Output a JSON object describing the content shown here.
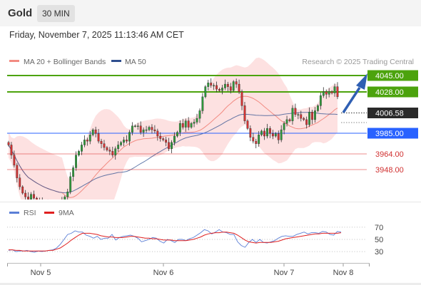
{
  "header": {
    "symbol": "Gold",
    "timeframe": "30 MIN",
    "datetime": "Friday, November 7, 2025 11:13:46 AM CET"
  },
  "legend": {
    "ma20_label": "MA 20 + Bollinger Bands",
    "ma50_label": "MA 50",
    "ma20_color": "#f28b82",
    "ma50_color": "#2f4f8f",
    "copyright": "Research © 2025 Trading Central"
  },
  "rsi_legend": {
    "rsi_label": "RSI",
    "ma_label": "9MA",
    "rsi_color": "#5b7fd6",
    "ma_color": "#e02020"
  },
  "chart_data": {
    "type": "candlestick",
    "x_ticks": [
      "Nov 5",
      "Nov 6",
      "Nov 7",
      "Nov 8"
    ],
    "price_range": [
      3905,
      4075
    ],
    "current_price": "4006.58",
    "levels": [
      {
        "value": 4045.0,
        "label": "4045.00",
        "kind": "target",
        "color": "#4ca30d"
      },
      {
        "value": 4028.0,
        "label": "4028.00",
        "kind": "resistance",
        "color": "#4ca30d"
      },
      {
        "value": 3985.0,
        "label": "3985.00",
        "kind": "pivot",
        "color": "#2962ff"
      },
      {
        "value": 3964.0,
        "label": "3964.00",
        "kind": "support",
        "color": "#e04040"
      },
      {
        "value": 3948.0,
        "label": "3948.00",
        "kind": "support",
        "color": "#e04040"
      }
    ],
    "closes": [
      3969,
      3961,
      3953,
      3943,
      3936,
      3931,
      3928,
      3926,
      3930,
      3927,
      3925,
      3924,
      3922,
      3921,
      3923,
      3921,
      3922,
      3920,
      3921,
      3925,
      3928,
      3932,
      3944,
      3951,
      3961,
      3964,
      3969,
      3973,
      3972,
      3977,
      3981,
      3978,
      3972,
      3970,
      3967,
      3965,
      3964,
      3961,
      3966,
      3969,
      3971,
      3973,
      3972,
      3979,
      3984,
      3984,
      3984,
      3979,
      3981,
      3981,
      3983,
      3981,
      3980,
      3976,
      3974,
      3973,
      3971,
      3966,
      3971,
      3976,
      3979,
      3986,
      3983,
      3988,
      3983,
      3986,
      3987,
      3990,
      3996,
      4007,
      4015,
      4018,
      4016,
      4016,
      4013,
      4012,
      4014,
      4017,
      4015,
      4012,
      4019,
      4017,
      4011,
      4000,
      3988,
      3982,
      3975,
      3972,
      3970,
      3977,
      3980,
      3976,
      3982,
      3978,
      3976,
      3978,
      3973,
      3981,
      3986,
      3989,
      3988,
      3998,
      3993,
      3993,
      3990,
      3989,
      3985,
      3995,
      3989,
      3996,
      4000,
      4008,
      4011,
      4009,
      4011,
      4010,
      4015,
      4007
    ],
    "rsi": {
      "ticks": [
        70,
        50,
        30
      ],
      "range": [
        15,
        85
      ],
      "rsi_values": [
        32,
        33,
        30,
        31,
        31,
        32,
        30,
        29,
        31,
        30,
        31,
        32,
        33,
        36,
        42,
        50,
        58,
        60,
        64,
        62,
        62,
        57,
        55,
        52,
        55,
        50,
        52,
        52,
        58,
        49,
        53,
        55,
        56,
        57,
        55,
        52,
        46,
        48,
        50,
        53,
        52,
        47,
        44,
        50,
        48,
        45,
        50,
        50,
        48,
        51,
        53,
        57,
        61,
        66,
        64,
        59,
        62,
        66,
        62,
        61,
        58,
        58,
        46,
        40,
        37,
        45,
        50,
        45,
        50,
        45,
        44,
        46,
        48,
        52,
        55,
        56,
        55,
        55,
        58,
        60,
        62,
        59,
        61,
        61,
        60,
        63,
        62,
        58,
        57,
        63,
        62
      ],
      "ma_values": [
        33,
        33,
        32,
        32,
        31,
        31,
        31,
        31,
        31,
        31,
        31,
        32,
        32,
        34,
        36,
        40,
        44,
        49,
        53,
        57,
        60,
        60,
        60,
        59,
        58,
        56,
        55,
        54,
        54,
        53,
        53,
        53,
        54,
        55,
        55,
        54,
        53,
        52,
        52,
        51,
        51,
        50,
        49,
        49,
        49,
        48,
        48,
        48,
        48,
        49,
        50,
        52,
        54,
        57,
        59,
        60,
        61,
        61,
        62,
        62,
        61,
        60,
        57,
        53,
        49,
        46,
        45,
        44,
        45,
        45,
        45,
        45,
        46,
        47,
        49,
        51,
        52,
        53,
        54,
        55,
        56,
        57,
        58,
        59,
        59,
        60,
        60,
        60,
        60,
        60,
        61
      ]
    }
  }
}
